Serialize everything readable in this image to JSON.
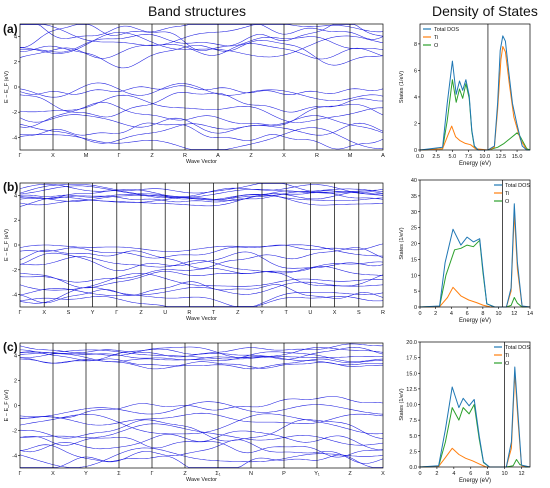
{
  "headings": {
    "band": "Band structures",
    "dos": "Density of States"
  },
  "panel_labels": [
    "(a)",
    "(b)",
    "(c)"
  ],
  "colors": {
    "band_line": "#1f1fe0",
    "total_dos": "#1f77b4",
    "ti": "#ff7f0e",
    "o": "#2ca02c",
    "axis": "#000000"
  },
  "chart_data": [
    {
      "type": "line",
      "panel": "(a)",
      "title": "",
      "xlabel": "Wave Vector",
      "ylabel": "E − E_F (eV)",
      "ylim": [
        -5,
        5
      ],
      "yticks": [
        -4,
        -2,
        0,
        2,
        4
      ],
      "kpoints": [
        "Γ",
        "X",
        "M",
        "Γ",
        "Z",
        "R",
        "A",
        "Z",
        "X",
        "R",
        "M",
        "A"
      ],
      "conduction_range": [
        2.2,
        5
      ],
      "valence_range": [
        -4.6,
        0
      ],
      "band_count": 9
    },
    {
      "type": "line",
      "panel": "(b)",
      "title": "",
      "xlabel": "Wave Vector",
      "ylabel": "E − E_F (eV)",
      "ylim": [
        -5,
        5
      ],
      "yticks": [
        -4,
        -2,
        0,
        2,
        4
      ],
      "kpoints": [
        "Γ",
        "X",
        "S",
        "Y",
        "Γ",
        "Z",
        "U",
        "R",
        "T",
        "Z",
        "Y",
        "T",
        "U",
        "X",
        "S",
        "R"
      ],
      "conduction_range": [
        3.4,
        4.6
      ],
      "valence_range": [
        -4.8,
        0
      ],
      "band_count": 12
    },
    {
      "type": "line",
      "panel": "(c)",
      "title": "",
      "xlabel": "Wave Vector",
      "ylabel": "E − E_F (eV)",
      "ylim": [
        -5,
        5
      ],
      "yticks": [
        -4,
        -2,
        0,
        2,
        4
      ],
      "kpoints": [
        "Γ",
        "X",
        "Y",
        "Σ",
        "Γ",
        "Z",
        "Σ₁",
        "N",
        "P",
        "Y₁",
        "Z",
        "X"
      ],
      "conduction_range": [
        3.3,
        4.5
      ],
      "valence_range": [
        -4.8,
        0
      ],
      "band_count": 11
    },
    {
      "type": "line",
      "panel": "(a)",
      "title": "",
      "xlabel": "Energy (eV)",
      "ylabel": "States (1/eV)",
      "xlim": [
        0,
        17
      ],
      "ylim": [
        0,
        9.5
      ],
      "xticks": [
        0.0,
        2.5,
        5.0,
        7.5,
        10.0,
        12.5,
        15.0
      ],
      "xtick_labels": [
        "0.0",
        "2.5",
        "5.0",
        "7.5",
        "10.0",
        "12.5",
        "15.0"
      ],
      "yticks": [
        0,
        2,
        4,
        6,
        8
      ],
      "vline": 10.5,
      "legend": "top-left",
      "series": [
        {
          "name": "Total DOS",
          "x": [
            0,
            3.5,
            4.2,
            5,
            5.6,
            6.1,
            6.6,
            7.1,
            7.6,
            8,
            8.4,
            9,
            10.5,
            11.5,
            12,
            12.4,
            12.8,
            13.2,
            13.7,
            14.3,
            15,
            15.8,
            16.5,
            17
          ],
          "values": [
            0,
            0.2,
            3.5,
            6.7,
            4.2,
            5.2,
            4.5,
            5.3,
            4.1,
            1.5,
            0.3,
            0,
            0,
            0.3,
            3.5,
            7.5,
            8.6,
            8.2,
            6.0,
            3.5,
            1.9,
            0.3,
            0,
            0
          ]
        },
        {
          "name": "Ti",
          "x": [
            0,
            3.5,
            4.3,
            4.9,
            5.5,
            6.2,
            7.0,
            7.8,
            8.6,
            10.5,
            11.5,
            12,
            12.5,
            12.8,
            13.2,
            13.8,
            14.5,
            15.5,
            16.5,
            17
          ],
          "values": [
            0,
            0.1,
            1.1,
            1.8,
            1.0,
            0.7,
            0.5,
            0.4,
            0.1,
            0,
            0.2,
            3.0,
            6.8,
            7.8,
            7.4,
            5.0,
            2.5,
            0.8,
            0,
            0
          ]
        },
        {
          "name": "O",
          "x": [
            0,
            3.5,
            4.2,
            5,
            5.6,
            6.1,
            6.6,
            7.1,
            7.6,
            8,
            8.4,
            9,
            10.5,
            12,
            13,
            14,
            15,
            15.5,
            16.5,
            17
          ],
          "values": [
            0,
            0.1,
            2.2,
            5.3,
            3.6,
            4.6,
            3.9,
            5.0,
            3.9,
            1.4,
            0.2,
            0,
            0,
            0.2,
            0.5,
            0.9,
            1.3,
            1.0,
            0.1,
            0
          ]
        }
      ]
    },
    {
      "type": "line",
      "panel": "(b)",
      "title": "",
      "xlabel": "Energy (eV)",
      "ylabel": "States (1/eV)",
      "xlim": [
        0,
        14
      ],
      "ylim": [
        0,
        40
      ],
      "xticks": [
        0,
        2,
        4,
        6,
        8,
        10,
        12,
        14
      ],
      "xtick_labels": [
        "0",
        "2",
        "4",
        "6",
        "8",
        "10",
        "12",
        "14"
      ],
      "yticks": [
        0,
        5,
        10,
        15,
        20,
        25,
        30,
        35,
        40
      ],
      "vline": 10.5,
      "legend": "top-right",
      "series": [
        {
          "name": "Total DOS",
          "x": [
            0,
            2.5,
            3.2,
            4.2,
            5.2,
            6.0,
            6.8,
            7.6,
            8.0,
            8.5,
            9.5,
            11,
            11.6,
            12,
            12.4,
            13,
            14
          ],
          "values": [
            0,
            0.3,
            14,
            24.5,
            19.5,
            22,
            20.5,
            21.5,
            12,
            1,
            0,
            0,
            6,
            32.5,
            14,
            0.3,
            0
          ]
        },
        {
          "name": "Ti",
          "x": [
            0,
            2.5,
            3.5,
            4.2,
            5.2,
            6.2,
            7.2,
            8,
            9,
            11,
            11.6,
            12,
            12.4,
            13,
            14
          ],
          "values": [
            0,
            0.1,
            3,
            6.2,
            3.5,
            2.2,
            1.4,
            0.6,
            0,
            0,
            5,
            29.5,
            12,
            0.2,
            0
          ]
        },
        {
          "name": "O",
          "x": [
            0,
            2.5,
            3.3,
            4.4,
            5.2,
            6.0,
            6.8,
            7.6,
            8.0,
            8.5,
            9.5,
            11,
            11.6,
            12,
            12.4,
            13,
            14
          ],
          "values": [
            0,
            0.2,
            10,
            18,
            18.5,
            19.5,
            19,
            21,
            11,
            1,
            0,
            0,
            0.5,
            3,
            1.2,
            0,
            0
          ]
        }
      ]
    },
    {
      "type": "line",
      "panel": "(c)",
      "title": "",
      "xlabel": "Energy (eV)",
      "ylabel": "States (1/eV)",
      "xlim": [
        0,
        13
      ],
      "ylim": [
        0,
        20
      ],
      "xticks": [
        0,
        2,
        4,
        6,
        8,
        10,
        12
      ],
      "xtick_labels": [
        "0",
        "2",
        "4",
        "6",
        "8",
        "10",
        "12"
      ],
      "yticks": [
        0.0,
        2.5,
        5.0,
        7.5,
        10.0,
        12.5,
        15.0,
        17.5,
        20.0
      ],
      "ytick_labels": [
        "0.0",
        "2.5",
        "5.0",
        "7.5",
        "10.0",
        "12.5",
        "15.0",
        "17.5",
        "20.0"
      ],
      "vline": 10,
      "legend": "top-right",
      "series": [
        {
          "name": "Total DOS",
          "x": [
            0,
            2.2,
            3.0,
            3.8,
            4.6,
            5.1,
            5.8,
            6.4,
            7.0,
            7.5,
            8.2,
            10.2,
            10.8,
            11.2,
            11.6,
            12,
            13
          ],
          "values": [
            0,
            0.2,
            6,
            12.8,
            9.5,
            11,
            9.8,
            10.8,
            5,
            0.8,
            0,
            0,
            4,
            16,
            8,
            0.3,
            0
          ]
        },
        {
          "name": "Ti",
          "x": [
            0,
            2.2,
            3.0,
            3.8,
            4.6,
            5.4,
            6.2,
            7.0,
            7.8,
            10.2,
            10.8,
            11.2,
            11.6,
            12,
            13
          ],
          "values": [
            0,
            0.1,
            1.5,
            3.0,
            2.0,
            1.4,
            1.0,
            0.5,
            0,
            0,
            3,
            15,
            7,
            0.2,
            0
          ]
        },
        {
          "name": "O",
          "x": [
            0,
            2.2,
            3.0,
            3.8,
            4.6,
            5.1,
            5.8,
            6.4,
            7.0,
            7.5,
            8.2,
            10.2,
            11,
            11.4,
            11.8,
            12.5,
            13
          ],
          "values": [
            0,
            0.1,
            4,
            9.5,
            7.5,
            9.5,
            8.5,
            10,
            4.5,
            0.7,
            0,
            0,
            0.2,
            1.2,
            0.4,
            0,
            0
          ]
        }
      ]
    }
  ]
}
